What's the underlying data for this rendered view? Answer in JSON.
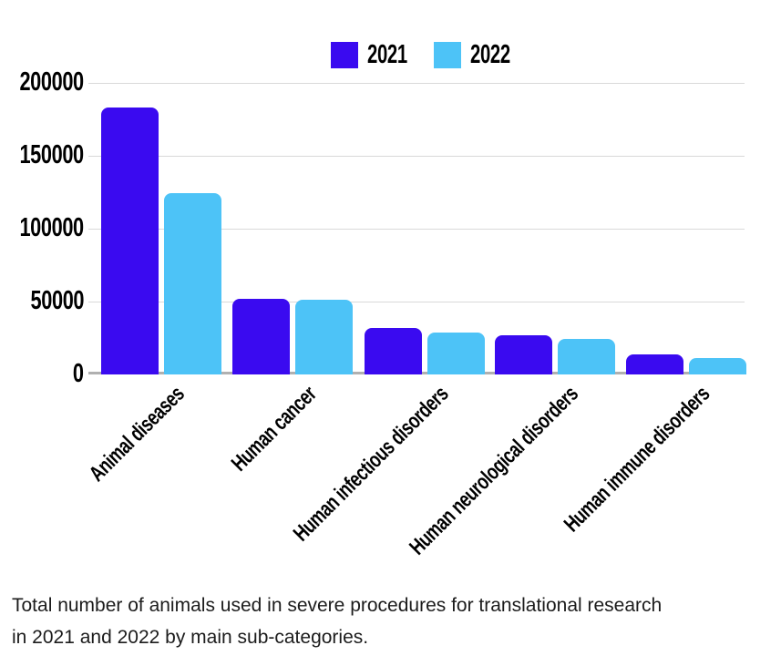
{
  "legend": {
    "items": [
      {
        "label": "2021",
        "color": "#3A0AF0"
      },
      {
        "label": "2022",
        "color": "#4DC3F7"
      }
    ]
  },
  "chart_data": {
    "type": "bar",
    "title": "",
    "categories": [
      "Animal diseases",
      "Human cancer",
      "Human infectious disorders",
      "Human neurological disorders",
      "Human immune disorders"
    ],
    "series": [
      {
        "name": "2021",
        "color": "#3A0AF0",
        "values": [
          183000,
          52000,
          32000,
          27000,
          13500
        ]
      },
      {
        "name": "2022",
        "color": "#4DC3F7",
        "values": [
          124500,
          51000,
          29000,
          24500,
          11000
        ]
      }
    ],
    "xlabel": "",
    "ylabel": "",
    "ylim": [
      0,
      200000
    ],
    "yticks": [
      0,
      50000,
      100000,
      150000,
      200000
    ],
    "grid": true,
    "legend_position": "top-center",
    "bar_corner_style": "rounded-top",
    "x_tick_label_rotation_deg": -45
  },
  "colors": {
    "gridline": "#D9D9D9",
    "axis_line": "#B0B0B0",
    "text": "#000000",
    "caption_text": "#1C1C1C",
    "background": "#FFFFFF"
  },
  "caption": {
    "line1": "Total number of animals used in severe procedures for translational research",
    "line2": "in 2021 and 2022 by main sub-categories."
  }
}
